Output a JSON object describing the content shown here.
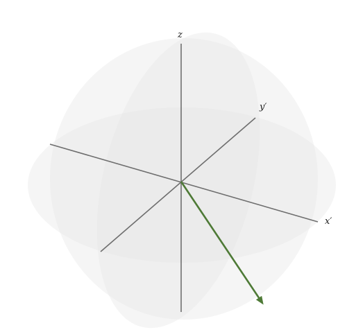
{
  "axes": {
    "z_label": "z",
    "y_label": "y′",
    "x_label": "x′"
  },
  "colors": {
    "axis": "#6e6e6e",
    "vector": "#4e7a36",
    "plane_fill": "#e6e6e6"
  },
  "vector": {
    "name": "direction-vector"
  }
}
